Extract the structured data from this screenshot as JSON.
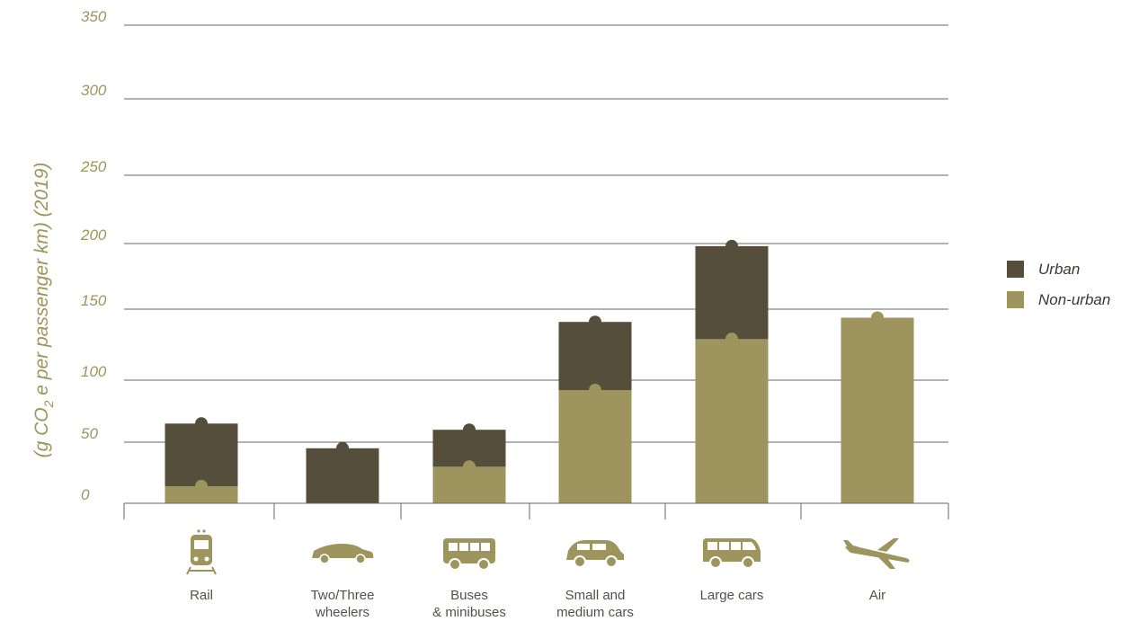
{
  "chart_data": {
    "type": "bar",
    "stacked": true,
    "ylabel": "(g CO2 e per passenger km) (2019)",
    "ylabel_parts": {
      "before": "(g CO",
      "subscript": "2",
      "after": " e per passenger km) (2019)"
    },
    "ylim": [
      0,
      350
    ],
    "yticks": [
      {
        "value": 0,
        "label": "0"
      },
      {
        "value": 50,
        "label": "50"
      },
      {
        "value": 100,
        "label": "100"
      },
      {
        "value": 150,
        "label": "150"
      },
      {
        "value": 200,
        "label": "200"
      },
      {
        "value": 250,
        "label": "250"
      },
      {
        "value": 300,
        "label": "300"
      },
      {
        "value": 350,
        "label": "350"
      }
    ],
    "grid": true,
    "legend_position": "right",
    "categories": [
      {
        "label_lines": [
          "Rail"
        ],
        "icon": "train-icon"
      },
      {
        "label_lines": [
          "Two/Three",
          "wheelers"
        ],
        "icon": "motorcycle-icon"
      },
      {
        "label_lines": [
          "Buses",
          "& minibuses"
        ],
        "icon": "bus-icon"
      },
      {
        "label_lines": [
          "Small and",
          "medium cars"
        ],
        "icon": "car-icon"
      },
      {
        "label_lines": [
          "Large cars"
        ],
        "icon": "van-icon"
      },
      {
        "label_lines": [
          "Air"
        ],
        "icon": "airplane-icon"
      }
    ],
    "series": [
      {
        "name": "Urban",
        "color": "#544e3a",
        "values": [
          65,
          45,
          60,
          141,
          198,
          null
        ]
      },
      {
        "name": "Non-urban",
        "color": "#9d955d",
        "values": [
          14,
          null,
          30,
          92,
          129,
          144
        ]
      }
    ]
  }
}
